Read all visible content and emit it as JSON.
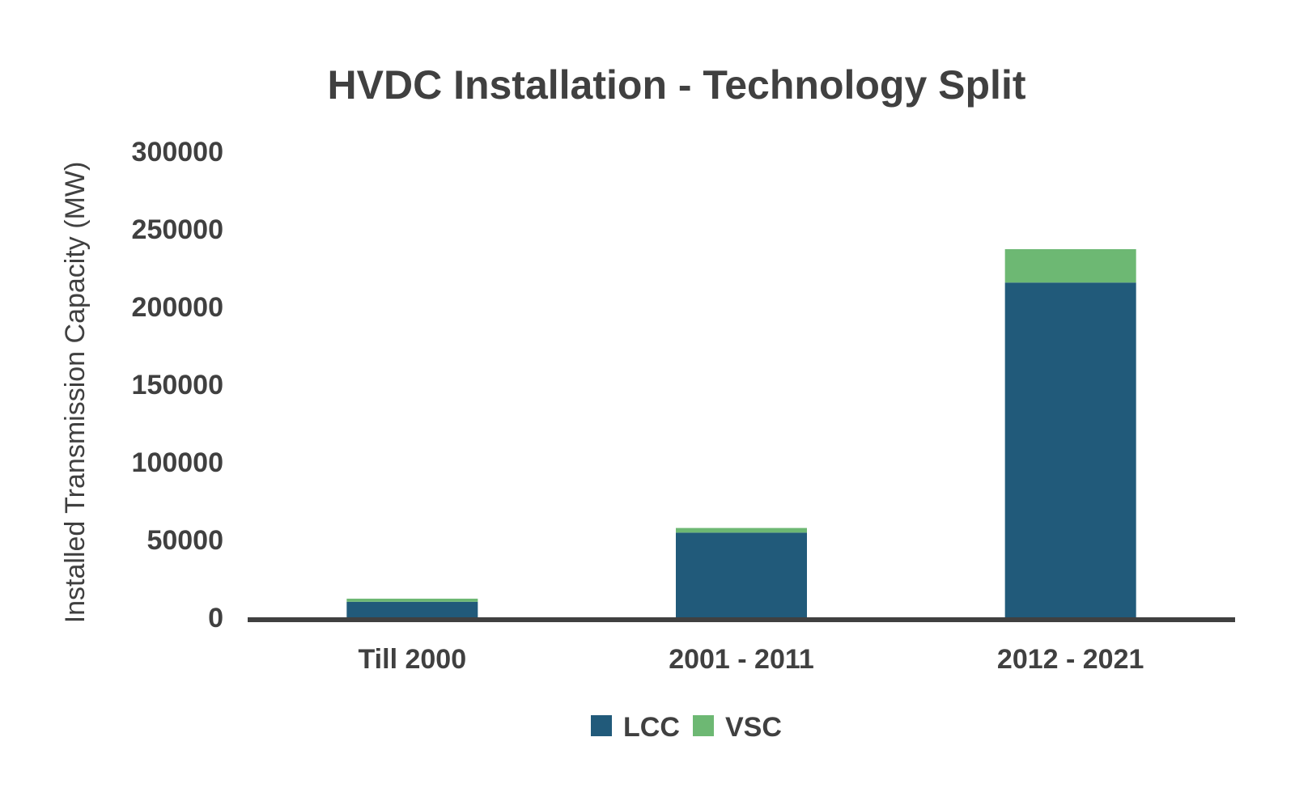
{
  "chart_data": {
    "type": "bar",
    "stacked": true,
    "title": "HVDC Installation - Technology Split",
    "xlabel": "",
    "ylabel": "Installed Transmission Capacity (MW)",
    "ylim": [
      0,
      300000
    ],
    "yticks": [
      0,
      50000,
      100000,
      150000,
      200000,
      250000,
      300000
    ],
    "ytick_labels": [
      "0",
      "50000",
      "100000",
      "150000",
      "200000",
      "250000",
      "300000"
    ],
    "categories": [
      "Till 2000",
      "2001 - 2011",
      "2012 - 2021"
    ],
    "series": [
      {
        "name": "LCC",
        "values": [
          10000,
          54500,
          215500
        ],
        "color": "#215a7a"
      },
      {
        "name": "VSC",
        "values": [
          2000,
          3000,
          21500
        ],
        "color": "#6db873"
      }
    ],
    "grid": false,
    "legend": "bottom"
  }
}
